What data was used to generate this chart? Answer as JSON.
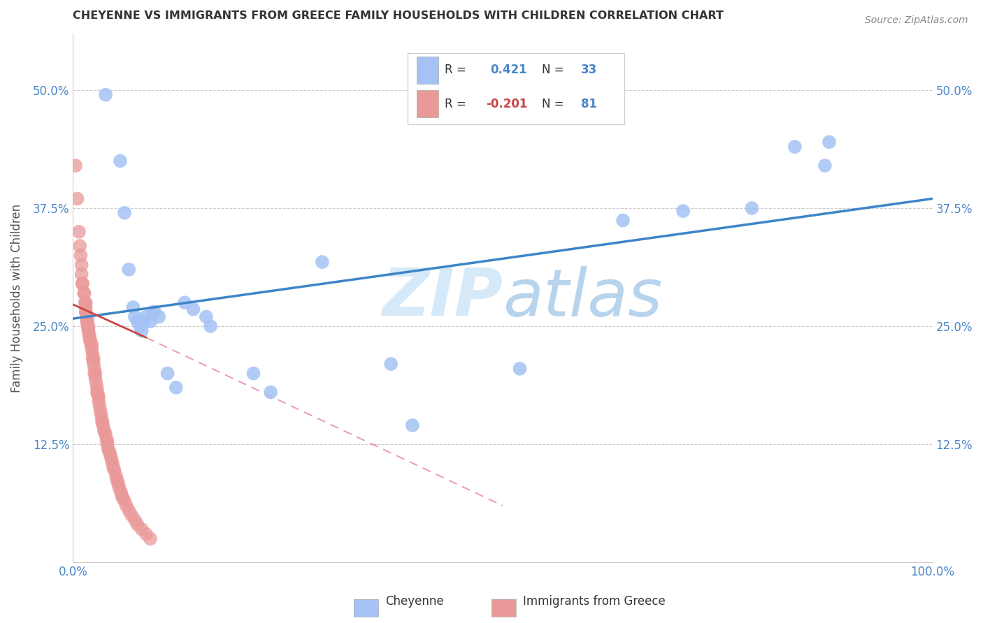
{
  "title": "CHEYENNE VS IMMIGRANTS FROM GREECE FAMILY HOUSEHOLDS WITH CHILDREN CORRELATION CHART",
  "source": "Source: ZipAtlas.com",
  "ylabel": "Family Households with Children",
  "xlim": [
    0.0,
    1.0
  ],
  "ylim": [
    0.0,
    0.56
  ],
  "yticks": [
    0.0,
    0.125,
    0.25,
    0.375,
    0.5
  ],
  "ytick_labels": [
    "",
    "12.5%",
    "25.0%",
    "37.5%",
    "50.0%"
  ],
  "xticks": [
    0.0,
    0.1,
    0.2,
    0.3,
    0.4,
    0.5,
    0.6,
    0.7,
    0.8,
    0.9,
    1.0
  ],
  "xtick_labels": [
    "0.0%",
    "",
    "",
    "",
    "",
    "",
    "",
    "",
    "",
    "",
    "100.0%"
  ],
  "cheyenne_color": "#a4c2f4",
  "greece_color": "#ea9999",
  "cheyenne_R": 0.421,
  "cheyenne_N": 33,
  "greece_R": -0.201,
  "greece_N": 81,
  "cheyenne_line_color": "#3d85c8",
  "greece_line_color": "#cc4444",
  "greece_dashed_color": "#e06090",
  "background_color": "#ffffff",
  "grid_color": "#cccccc",
  "watermark_color": "#d6e9f8",
  "cheyenne_scatter": [
    [
      0.038,
      0.495
    ],
    [
      0.055,
      0.425
    ],
    [
      0.06,
      0.37
    ],
    [
      0.065,
      0.31
    ],
    [
      0.07,
      0.27
    ],
    [
      0.072,
      0.26
    ],
    [
      0.075,
      0.255
    ],
    [
      0.078,
      0.25
    ],
    [
      0.08,
      0.245
    ],
    [
      0.082,
      0.255
    ],
    [
      0.085,
      0.26
    ],
    [
      0.09,
      0.255
    ],
    [
      0.093,
      0.265
    ],
    [
      0.095,
      0.265
    ],
    [
      0.1,
      0.26
    ],
    [
      0.11,
      0.2
    ],
    [
      0.12,
      0.185
    ],
    [
      0.13,
      0.275
    ],
    [
      0.14,
      0.268
    ],
    [
      0.155,
      0.26
    ],
    [
      0.16,
      0.25
    ],
    [
      0.21,
      0.2
    ],
    [
      0.23,
      0.18
    ],
    [
      0.29,
      0.318
    ],
    [
      0.37,
      0.21
    ],
    [
      0.395,
      0.145
    ],
    [
      0.52,
      0.205
    ],
    [
      0.64,
      0.362
    ],
    [
      0.71,
      0.372
    ],
    [
      0.79,
      0.375
    ],
    [
      0.84,
      0.44
    ],
    [
      0.875,
      0.42
    ],
    [
      0.88,
      0.445
    ]
  ],
  "greece_scatter": [
    [
      0.003,
      0.42
    ],
    [
      0.005,
      0.385
    ],
    [
      0.007,
      0.35
    ],
    [
      0.008,
      0.335
    ],
    [
      0.009,
      0.325
    ],
    [
      0.01,
      0.315
    ],
    [
      0.01,
      0.305
    ],
    [
      0.011,
      0.295
    ],
    [
      0.011,
      0.295
    ],
    [
      0.013,
      0.285
    ],
    [
      0.013,
      0.285
    ],
    [
      0.014,
      0.275
    ],
    [
      0.015,
      0.275
    ],
    [
      0.015,
      0.27
    ],
    [
      0.015,
      0.265
    ],
    [
      0.015,
      0.265
    ],
    [
      0.016,
      0.26
    ],
    [
      0.016,
      0.255
    ],
    [
      0.017,
      0.255
    ],
    [
      0.017,
      0.25
    ],
    [
      0.018,
      0.25
    ],
    [
      0.018,
      0.245
    ],
    [
      0.018,
      0.245
    ],
    [
      0.019,
      0.24
    ],
    [
      0.019,
      0.24
    ],
    [
      0.02,
      0.235
    ],
    [
      0.02,
      0.235
    ],
    [
      0.021,
      0.23
    ],
    [
      0.022,
      0.23
    ],
    [
      0.022,
      0.225
    ],
    [
      0.023,
      0.22
    ],
    [
      0.023,
      0.215
    ],
    [
      0.024,
      0.215
    ],
    [
      0.024,
      0.21
    ],
    [
      0.025,
      0.205
    ],
    [
      0.025,
      0.2
    ],
    [
      0.026,
      0.2
    ],
    [
      0.026,
      0.195
    ],
    [
      0.027,
      0.19
    ],
    [
      0.028,
      0.185
    ],
    [
      0.028,
      0.18
    ],
    [
      0.029,
      0.178
    ],
    [
      0.03,
      0.175
    ],
    [
      0.03,
      0.17
    ],
    [
      0.031,
      0.165
    ],
    [
      0.032,
      0.16
    ],
    [
      0.033,
      0.155
    ],
    [
      0.034,
      0.15
    ],
    [
      0.034,
      0.148
    ],
    [
      0.035,
      0.145
    ],
    [
      0.036,
      0.14
    ],
    [
      0.037,
      0.138
    ],
    [
      0.038,
      0.135
    ],
    [
      0.039,
      0.13
    ],
    [
      0.04,
      0.128
    ],
    [
      0.04,
      0.125
    ],
    [
      0.041,
      0.12
    ],
    [
      0.042,
      0.118
    ],
    [
      0.043,
      0.115
    ],
    [
      0.044,
      0.112
    ],
    [
      0.045,
      0.108
    ],
    [
      0.046,
      0.105
    ],
    [
      0.047,
      0.1
    ],
    [
      0.048,
      0.098
    ],
    [
      0.05,
      0.092
    ],
    [
      0.051,
      0.088
    ],
    [
      0.052,
      0.085
    ],
    [
      0.053,
      0.082
    ],
    [
      0.054,
      0.078
    ],
    [
      0.056,
      0.074
    ],
    [
      0.057,
      0.07
    ],
    [
      0.058,
      0.068
    ],
    [
      0.06,
      0.065
    ],
    [
      0.062,
      0.06
    ],
    [
      0.065,
      0.055
    ],
    [
      0.068,
      0.05
    ],
    [
      0.072,
      0.045
    ],
    [
      0.075,
      0.04
    ],
    [
      0.08,
      0.035
    ],
    [
      0.085,
      0.03
    ],
    [
      0.09,
      0.025
    ]
  ]
}
